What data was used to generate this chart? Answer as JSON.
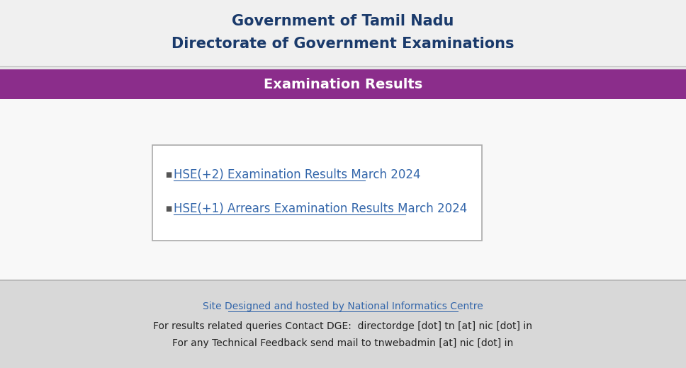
{
  "bg_color": "#e8e8e8",
  "header_bg": "#f0f0f0",
  "header_line1": "Government of Tamil Nadu",
  "header_line2": "Directorate of Government Examinations",
  "header_text_color": "#1a3a6b",
  "banner_bg": "#8b2d8b",
  "banner_text": "Examination Results",
  "banner_text_color": "#ffffff",
  "link1": "HSE(+2) Examination Results March 2024",
  "link2": "HSE(+1) Arrears Examination Results March 2024",
  "link_color": "#3366aa",
  "bullet_color": "#555555",
  "box_bg": "#ffffff",
  "box_border": "#aaaaaa",
  "footer_bg": "#d8d8d8",
  "footer_link": "Site Designed and hosted by National Informatics Centre",
  "footer_link_color": "#3366aa",
  "footer_line1": "For results related queries Contact DGE:  directordge [dot] tn [at] nic [dot] in",
  "footer_line2": "For any Technical Feedback send mail to tnwebadmin [at] nic [dot] in",
  "footer_text_color": "#222222"
}
